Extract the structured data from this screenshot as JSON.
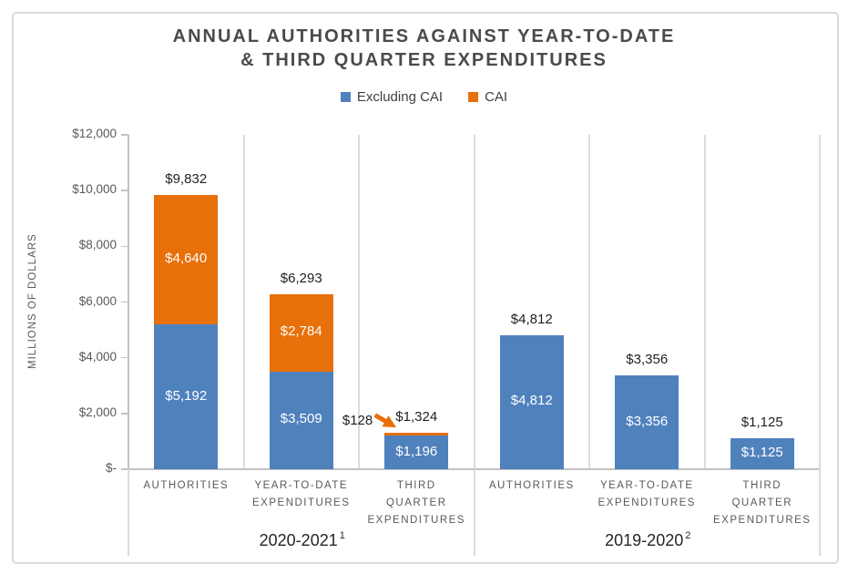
{
  "chart_data": {
    "type": "stacked-bar",
    "title_line1": "ANNUAL AUTHORITIES AGAINST YEAR-TO-DATE",
    "title_line2": "& THIRD QUARTER EXPENDITURES",
    "ylabel": "MILLIONS OF DOLLARS",
    "ylim": [
      0,
      12000
    ],
    "grid": "vertical-category-separators-only",
    "legend_position": "top-center",
    "yticks": [
      {
        "value": 12000,
        "label": "$12,000"
      },
      {
        "value": 10000,
        "label": "$10,000"
      },
      {
        "value": 8000,
        "label": "$8,000"
      },
      {
        "value": 6000,
        "label": "$6,000"
      },
      {
        "value": 4000,
        "label": "$4,000"
      },
      {
        "value": 2000,
        "label": "$2,000"
      },
      {
        "value": 0,
        "label": "$-"
      }
    ],
    "legend": [
      {
        "name": "Excluding CAI",
        "color": "#4F81BD"
      },
      {
        "name": "CAI",
        "color": "#E8700A"
      }
    ],
    "colors": {
      "excluding_cai": "#4F81BD",
      "cai": "#E8700A",
      "separator": "#DCDCDC",
      "axis_line": "#C2C2C2",
      "title_text": "#4A4A4A",
      "axis_text": "#595959",
      "value_text": "#1F1F1F"
    },
    "groups": [
      {
        "label": "2020-2021",
        "footnote": "1",
        "bars": [
          {
            "category": "AUTHORITIES",
            "excluding_cai": 5192,
            "cai": 4640,
            "total": 9832,
            "excluding_cai_label": "$5,192",
            "cai_label": "$4,640",
            "total_label": "$9,832",
            "cai_label_placement": "inside"
          },
          {
            "category": "YEAR-TO-DATE\nEXPENDITURES",
            "excluding_cai": 3509,
            "cai": 2784,
            "total": 6293,
            "excluding_cai_label": "$3,509",
            "cai_label": "$2,784",
            "total_label": "$6,293",
            "cai_label_placement": "inside"
          },
          {
            "category": "THIRD\nQUARTER\nEXPENDITURES",
            "excluding_cai": 1196,
            "cai": 128,
            "total": 1324,
            "excluding_cai_label": "$1,196",
            "cai_label": "$128",
            "total_label": "$1,324",
            "cai_label_placement": "callout"
          }
        ]
      },
      {
        "label": "2019-2020",
        "footnote": "2",
        "bars": [
          {
            "category": "AUTHORITIES",
            "excluding_cai": 4812,
            "cai": 0,
            "total": 4812,
            "excluding_cai_label": "$4,812",
            "cai_label": "",
            "total_label": "$4,812",
            "cai_label_placement": "none"
          },
          {
            "category": "YEAR-TO-DATE\nEXPENDITURES",
            "excluding_cai": 3356,
            "cai": 0,
            "total": 3356,
            "excluding_cai_label": "$3,356",
            "cai_label": "",
            "total_label": "$3,356",
            "cai_label_placement": "none"
          },
          {
            "category": "THIRD\nQUARTER\nEXPENDITURES",
            "excluding_cai": 1125,
            "cai": 0,
            "total": 1125,
            "excluding_cai_label": "$1,125",
            "cai_label": "",
            "total_label": "$1,125",
            "cai_label_placement": "none"
          }
        ]
      }
    ]
  }
}
